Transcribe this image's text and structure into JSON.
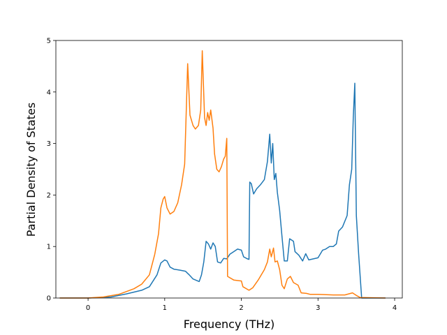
{
  "chart_data": {
    "type": "line",
    "title": "",
    "xlabel": "Frequency (THz)",
    "ylabel": "Partial Density of States",
    "xlim": [
      -0.42,
      4.1
    ],
    "ylim": [
      0,
      5
    ],
    "xticks": [
      0,
      1,
      2,
      3,
      4
    ],
    "yticks": [
      0,
      1,
      2,
      3,
      4,
      5
    ],
    "grid": false,
    "legend": "none",
    "series": [
      {
        "color": "#1f77b4",
        "points": [
          [
            -0.37,
            0
          ],
          [
            0.0,
            0
          ],
          [
            0.3,
            0.02
          ],
          [
            0.5,
            0.08
          ],
          [
            0.7,
            0.15
          ],
          [
            0.8,
            0.22
          ],
          [
            0.9,
            0.45
          ],
          [
            0.95,
            0.68
          ],
          [
            1.0,
            0.74
          ],
          [
            1.03,
            0.72
          ],
          [
            1.07,
            0.6
          ],
          [
            1.12,
            0.56
          ],
          [
            1.2,
            0.54
          ],
          [
            1.27,
            0.52
          ],
          [
            1.32,
            0.45
          ],
          [
            1.37,
            0.37
          ],
          [
            1.45,
            0.32
          ],
          [
            1.48,
            0.45
          ],
          [
            1.51,
            0.7
          ],
          [
            1.54,
            1.1
          ],
          [
            1.57,
            1.05
          ],
          [
            1.6,
            0.95
          ],
          [
            1.63,
            1.07
          ],
          [
            1.66,
            1.0
          ],
          [
            1.69,
            0.7
          ],
          [
            1.73,
            0.68
          ],
          [
            1.77,
            0.77
          ],
          [
            1.81,
            0.76
          ],
          [
            1.85,
            0.85
          ],
          [
            1.9,
            0.9
          ],
          [
            1.95,
            0.95
          ],
          [
            2.0,
            0.93
          ],
          [
            2.03,
            0.8
          ],
          [
            2.08,
            0.76
          ],
          [
            2.1,
            0.75
          ],
          [
            2.11,
            2.25
          ],
          [
            2.13,
            2.22
          ],
          [
            2.16,
            2.02
          ],
          [
            2.2,
            2.12
          ],
          [
            2.25,
            2.2
          ],
          [
            2.3,
            2.3
          ],
          [
            2.34,
            2.65
          ],
          [
            2.37,
            3.18
          ],
          [
            2.39,
            2.62
          ],
          [
            2.41,
            3.0
          ],
          [
            2.43,
            2.3
          ],
          [
            2.45,
            2.42
          ],
          [
            2.47,
            2.05
          ],
          [
            2.5,
            1.7
          ],
          [
            2.53,
            1.2
          ],
          [
            2.56,
            0.72
          ],
          [
            2.6,
            0.72
          ],
          [
            2.63,
            1.15
          ],
          [
            2.66,
            1.12
          ],
          [
            2.68,
            1.1
          ],
          [
            2.7,
            0.9
          ],
          [
            2.75,
            0.83
          ],
          [
            2.8,
            0.72
          ],
          [
            2.84,
            0.86
          ],
          [
            2.88,
            0.74
          ],
          [
            3.0,
            0.78
          ],
          [
            3.06,
            0.93
          ],
          [
            3.1,
            0.95
          ],
          [
            3.15,
            1.0
          ],
          [
            3.2,
            1.0
          ],
          [
            3.24,
            1.05
          ],
          [
            3.27,
            1.3
          ],
          [
            3.32,
            1.38
          ],
          [
            3.38,
            1.6
          ],
          [
            3.41,
            2.2
          ],
          [
            3.44,
            2.5
          ],
          [
            3.46,
            3.5
          ],
          [
            3.48,
            4.17
          ],
          [
            3.5,
            1.6
          ],
          [
            3.53,
            0.85
          ],
          [
            3.57,
            0.0
          ],
          [
            3.88,
            0.0
          ]
        ]
      },
      {
        "color": "#ff7f0e",
        "points": [
          [
            -0.37,
            0
          ],
          [
            0.0,
            0
          ],
          [
            0.2,
            0.02
          ],
          [
            0.4,
            0.07
          ],
          [
            0.6,
            0.18
          ],
          [
            0.7,
            0.27
          ],
          [
            0.8,
            0.45
          ],
          [
            0.87,
            0.85
          ],
          [
            0.92,
            1.25
          ],
          [
            0.95,
            1.75
          ],
          [
            0.98,
            1.92
          ],
          [
            1.0,
            1.97
          ],
          [
            1.03,
            1.75
          ],
          [
            1.07,
            1.63
          ],
          [
            1.12,
            1.68
          ],
          [
            1.17,
            1.85
          ],
          [
            1.22,
            2.2
          ],
          [
            1.26,
            2.6
          ],
          [
            1.3,
            4.55
          ],
          [
            1.33,
            3.55
          ],
          [
            1.37,
            3.35
          ],
          [
            1.4,
            3.28
          ],
          [
            1.44,
            3.35
          ],
          [
            1.47,
            3.65
          ],
          [
            1.49,
            4.8
          ],
          [
            1.52,
            3.5
          ],
          [
            1.54,
            3.35
          ],
          [
            1.56,
            3.6
          ],
          [
            1.58,
            3.45
          ],
          [
            1.6,
            3.65
          ],
          [
            1.63,
            3.3
          ],
          [
            1.65,
            2.8
          ],
          [
            1.68,
            2.5
          ],
          [
            1.71,
            2.45
          ],
          [
            1.74,
            2.55
          ],
          [
            1.77,
            2.7
          ],
          [
            1.79,
            2.75
          ],
          [
            1.81,
            3.1
          ],
          [
            1.82,
            0.42
          ],
          [
            1.9,
            0.35
          ],
          [
            2.0,
            0.33
          ],
          [
            2.02,
            0.22
          ],
          [
            2.1,
            0.15
          ],
          [
            2.15,
            0.2
          ],
          [
            2.22,
            0.35
          ],
          [
            2.3,
            0.55
          ],
          [
            2.34,
            0.7
          ],
          [
            2.37,
            0.95
          ],
          [
            2.39,
            0.8
          ],
          [
            2.42,
            0.97
          ],
          [
            2.44,
            0.7
          ],
          [
            2.47,
            0.72
          ],
          [
            2.5,
            0.55
          ],
          [
            2.53,
            0.25
          ],
          [
            2.56,
            0.18
          ],
          [
            2.6,
            0.37
          ],
          [
            2.64,
            0.42
          ],
          [
            2.68,
            0.3
          ],
          [
            2.74,
            0.25
          ],
          [
            2.78,
            0.1
          ],
          [
            2.85,
            0.09
          ],
          [
            2.9,
            0.07
          ],
          [
            3.0,
            0.07
          ],
          [
            3.2,
            0.06
          ],
          [
            3.35,
            0.06
          ],
          [
            3.45,
            0.1
          ],
          [
            3.5,
            0.05
          ],
          [
            3.55,
            0.01
          ],
          [
            3.88,
            0.0
          ]
        ]
      }
    ]
  }
}
